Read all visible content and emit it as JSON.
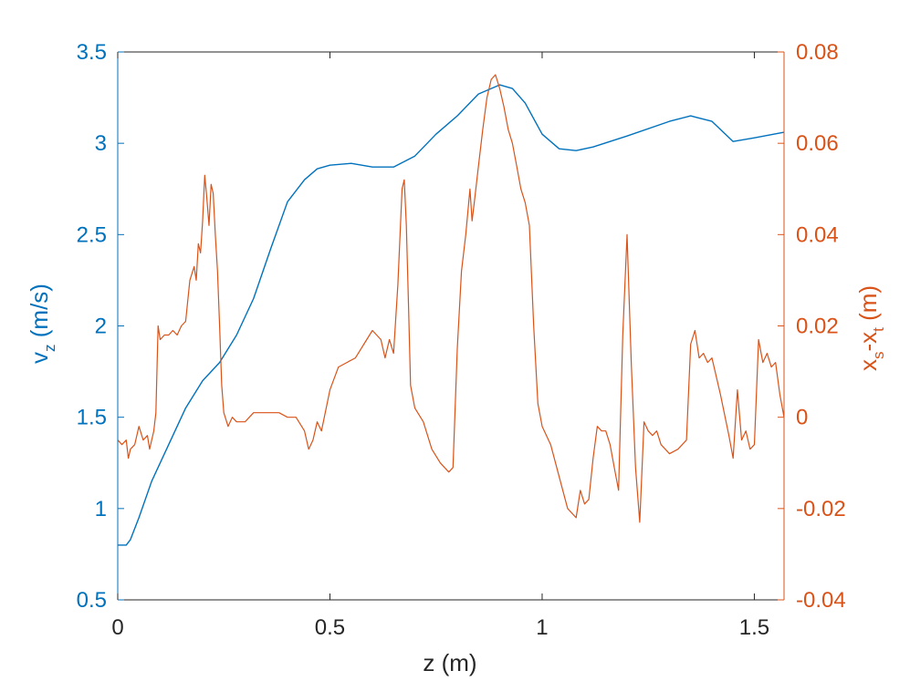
{
  "chart_data": {
    "type": "line",
    "title": "",
    "xlabel": "z (m)",
    "xlim": [
      0,
      1.57
    ],
    "xticks": [
      {
        "value": 0,
        "label": "0"
      },
      {
        "value": 0.5,
        "label": "0.5"
      },
      {
        "value": 1,
        "label": "1"
      },
      {
        "value": 1.5,
        "label": "1.5"
      }
    ],
    "left_axis": {
      "label_main": "v",
      "label_sub": "z",
      "label_unit": " (m/s)",
      "color": "#0072BD",
      "ylim": [
        0.5,
        3.5
      ],
      "ticks": [
        {
          "value": 0.5,
          "label": "0.5"
        },
        {
          "value": 1,
          "label": "1"
        },
        {
          "value": 1.5,
          "label": "1.5"
        },
        {
          "value": 2,
          "label": "2"
        },
        {
          "value": 2.5,
          "label": "2.5"
        },
        {
          "value": 3,
          "label": "3"
        },
        {
          "value": 3.5,
          "label": "3.5"
        }
      ]
    },
    "right_axis": {
      "label_a": "x",
      "label_a_sub": "s",
      "label_mid": "-x",
      "label_b_sub": "t",
      "label_unit": " (m)",
      "color": "#D95319",
      "ylim": [
        -0.04,
        0.08
      ],
      "ticks": [
        {
          "value": -0.04,
          "label": "-0.04"
        },
        {
          "value": -0.02,
          "label": "-0.02"
        },
        {
          "value": 0,
          "label": "0"
        },
        {
          "value": 0.02,
          "label": "0.02"
        },
        {
          "value": 0.04,
          "label": "0.04"
        },
        {
          "value": 0.06,
          "label": "0.06"
        },
        {
          "value": 0.08,
          "label": "0.08"
        }
      ]
    },
    "series": [
      {
        "axis": "left",
        "color": "#0072BD",
        "x": [
          0,
          0.02,
          0.03,
          0.05,
          0.08,
          0.12,
          0.16,
          0.2,
          0.24,
          0.28,
          0.32,
          0.36,
          0.4,
          0.44,
          0.47,
          0.5,
          0.55,
          0.6,
          0.65,
          0.7,
          0.75,
          0.8,
          0.85,
          0.9,
          0.93,
          0.96,
          1.0,
          1.04,
          1.08,
          1.12,
          1.2,
          1.3,
          1.35,
          1.4,
          1.45,
          1.5,
          1.57
        ],
        "y": [
          0.8,
          0.8,
          0.83,
          0.95,
          1.15,
          1.35,
          1.55,
          1.7,
          1.8,
          1.95,
          2.15,
          2.42,
          2.68,
          2.8,
          2.86,
          2.88,
          2.89,
          2.87,
          2.87,
          2.93,
          3.05,
          3.15,
          3.27,
          3.32,
          3.3,
          3.22,
          3.05,
          2.97,
          2.96,
          2.98,
          3.04,
          3.12,
          3.15,
          3.12,
          3.01,
          3.03,
          3.06
        ]
      },
      {
        "axis": "right",
        "color": "#D95319",
        "x": [
          0,
          0.01,
          0.02,
          0.025,
          0.03,
          0.04,
          0.05,
          0.06,
          0.07,
          0.075,
          0.08,
          0.085,
          0.09,
          0.095,
          0.1,
          0.11,
          0.12,
          0.13,
          0.14,
          0.15,
          0.16,
          0.17,
          0.18,
          0.185,
          0.19,
          0.195,
          0.2,
          0.205,
          0.21,
          0.215,
          0.22,
          0.225,
          0.23,
          0.235,
          0.24,
          0.245,
          0.25,
          0.26,
          0.27,
          0.28,
          0.3,
          0.32,
          0.34,
          0.36,
          0.38,
          0.4,
          0.42,
          0.44,
          0.45,
          0.46,
          0.47,
          0.48,
          0.5,
          0.52,
          0.54,
          0.56,
          0.58,
          0.6,
          0.62,
          0.63,
          0.64,
          0.65,
          0.66,
          0.67,
          0.675,
          0.68,
          0.685,
          0.69,
          0.7,
          0.72,
          0.74,
          0.76,
          0.78,
          0.79,
          0.8,
          0.81,
          0.82,
          0.83,
          0.835,
          0.84,
          0.85,
          0.86,
          0.87,
          0.88,
          0.89,
          0.9,
          0.91,
          0.92,
          0.93,
          0.94,
          0.95,
          0.96,
          0.97,
          0.98,
          0.99,
          1.0,
          1.02,
          1.04,
          1.06,
          1.08,
          1.09,
          1.1,
          1.11,
          1.12,
          1.13,
          1.14,
          1.15,
          1.16,
          1.17,
          1.18,
          1.19,
          1.2,
          1.21,
          1.22,
          1.23,
          1.24,
          1.25,
          1.26,
          1.27,
          1.28,
          1.3,
          1.32,
          1.34,
          1.35,
          1.36,
          1.37,
          1.38,
          1.39,
          1.4,
          1.42,
          1.44,
          1.45,
          1.46,
          1.47,
          1.48,
          1.49,
          1.5,
          1.51,
          1.52,
          1.53,
          1.54,
          1.55,
          1.56,
          1.57
        ],
        "y": [
          -0.005,
          -0.006,
          -0.005,
          -0.009,
          -0.007,
          -0.006,
          -0.002,
          -0.005,
          -0.004,
          -0.007,
          -0.005,
          -0.003,
          0.001,
          0.02,
          0.017,
          0.018,
          0.018,
          0.019,
          0.018,
          0.02,
          0.021,
          0.03,
          0.033,
          0.03,
          0.038,
          0.036,
          0.043,
          0.053,
          0.048,
          0.042,
          0.051,
          0.049,
          0.04,
          0.032,
          0.02,
          0.007,
          0.001,
          -0.002,
          0,
          -0.001,
          -0.001,
          0.001,
          0.001,
          0.001,
          0.001,
          0,
          0,
          -0.003,
          -0.007,
          -0.005,
          -0.001,
          -0.003,
          0.006,
          0.011,
          0.012,
          0.013,
          0.016,
          0.019,
          0.017,
          0.013,
          0.017,
          0.014,
          0.029,
          0.05,
          0.052,
          0.042,
          0.025,
          0.007,
          0.002,
          -0.001,
          -0.007,
          -0.01,
          -0.012,
          -0.011,
          0.015,
          0.032,
          0.04,
          0.05,
          0.043,
          0.047,
          0.055,
          0.063,
          0.07,
          0.074,
          0.075,
          0.072,
          0.068,
          0.063,
          0.06,
          0.055,
          0.05,
          0.047,
          0.042,
          0.02,
          0.003,
          -0.002,
          -0.006,
          -0.013,
          -0.02,
          -0.022,
          -0.016,
          -0.019,
          -0.018,
          -0.009,
          -0.002,
          -0.003,
          -0.003,
          -0.006,
          -0.011,
          -0.016,
          0.018,
          0.04,
          0.012,
          -0.011,
          -0.023,
          -0.001,
          -0.003,
          -0.004,
          -0.003,
          -0.006,
          -0.008,
          -0.007,
          -0.005,
          0.016,
          0.019,
          0.013,
          0.014,
          0.012,
          0.013,
          0.005,
          -0.004,
          -0.009,
          0.006,
          -0.005,
          -0.003,
          -0.007,
          -0.006,
          0.017,
          0.012,
          0.014,
          0.011,
          0.012,
          0.005,
          0
        ]
      }
    ]
  }
}
